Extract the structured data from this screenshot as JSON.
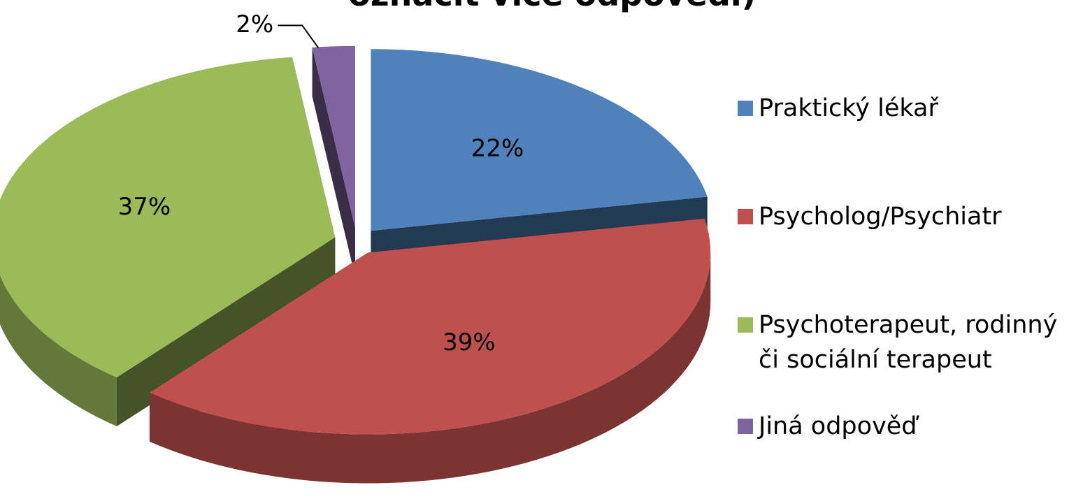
{
  "chart_data": {
    "type": "pie3d",
    "title": "označit více odpovědí)",
    "categories": [
      "Praktický lékař",
      "Psycholog/Psychiatr",
      "Psychoterapeut, rodinný či sociální terapeut",
      "Jiná odpověď"
    ],
    "values": [
      22,
      39,
      37,
      2
    ],
    "value_labels": [
      "22%",
      "39%",
      "37%",
      "2%"
    ],
    "colors": [
      "#4f81bd",
      "#c0504d",
      "#9bbb59",
      "#8064a2"
    ],
    "legend": "right"
  }
}
